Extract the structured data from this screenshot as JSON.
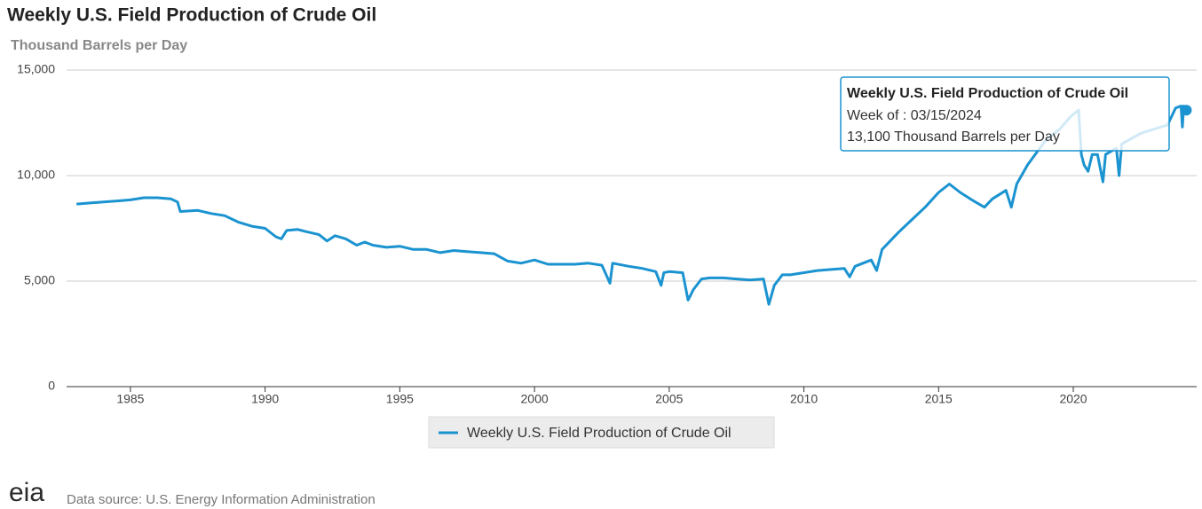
{
  "chart_data": {
    "type": "line",
    "title": "Weekly U.S. Field Production of Crude Oil",
    "y_label": "Thousand Barrels per Day",
    "x": [
      1983.0,
      1983.5,
      1984.0,
      1984.5,
      1985.0,
      1985.5,
      1986.0,
      1986.5,
      1986.75,
      1986.85,
      1987.5,
      1988.0,
      1988.5,
      1989.0,
      1989.5,
      1990.0,
      1990.4,
      1990.6,
      1990.8,
      1991.2,
      1991.5,
      1992.0,
      1992.3,
      1992.6,
      1993.0,
      1993.4,
      1993.7,
      1994.0,
      1994.5,
      1995.0,
      1995.5,
      1996.0,
      1996.5,
      1997.0,
      1997.5,
      1998.0,
      1998.5,
      1999.0,
      1999.5,
      2000.0,
      2000.5,
      2001.0,
      2001.5,
      2002.0,
      2002.5,
      2002.8,
      2002.9,
      2003.5,
      2004.0,
      2004.5,
      2004.7,
      2004.8,
      2005.0,
      2005.5,
      2005.7,
      2005.9,
      2006.2,
      2006.5,
      2007.0,
      2007.5,
      2008.0,
      2008.5,
      2008.7,
      2008.9,
      2009.2,
      2009.5,
      2010.0,
      2010.5,
      2011.0,
      2011.5,
      2011.7,
      2011.9,
      2012.5,
      2012.7,
      2012.9,
      2013.5,
      2014.0,
      2014.5,
      2015.0,
      2015.4,
      2015.8,
      2016.3,
      2016.7,
      2017.0,
      2017.5,
      2017.7,
      2017.9,
      2018.3,
      2018.7,
      2019.0,
      2019.5,
      2019.9,
      2020.2,
      2020.3,
      2020.4,
      2020.55,
      2020.7,
      2020.9,
      2021.1,
      2021.2,
      2021.6,
      2021.7,
      2021.8,
      2022.5,
      2023.0,
      2023.5,
      2023.8,
      2024.0,
      2024.05,
      2024.1,
      2024.2
    ],
    "series": [
      {
        "name": "Weekly U.S. Field Production of Crude Oil",
        "color": "#1a93d0",
        "values": [
          8650,
          8700,
          8750,
          8800,
          8850,
          8950,
          8950,
          8900,
          8750,
          8300,
          8350,
          8200,
          8100,
          7800,
          7600,
          7500,
          7100,
          7000,
          7400,
          7450,
          7350,
          7200,
          6900,
          7150,
          7000,
          6700,
          6850,
          6700,
          6600,
          6650,
          6500,
          6500,
          6350,
          6450,
          6400,
          6350,
          6300,
          5950,
          5850,
          6000,
          5800,
          5800,
          5800,
          5850,
          5750,
          4900,
          5850,
          5700,
          5600,
          5450,
          4800,
          5400,
          5450,
          5400,
          4100,
          4600,
          5100,
          5150,
          5150,
          5100,
          5050,
          5100,
          3900,
          4800,
          5300,
          5300,
          5400,
          5500,
          5550,
          5600,
          5200,
          5700,
          6000,
          5500,
          6500,
          7300,
          7900,
          8500,
          9200,
          9600,
          9200,
          8800,
          8500,
          8900,
          9300,
          8500,
          9600,
          10500,
          11200,
          11700,
          12200,
          12800,
          13100,
          11000,
          10500,
          10200,
          11000,
          11000,
          9700,
          11000,
          11300,
          10000,
          11500,
          12000,
          12200,
          12400,
          13200,
          13300,
          12300,
          13300,
          13100
        ]
      }
    ],
    "xlim": [
      1982.63,
      2024.58
    ],
    "ylim": [
      0,
      15000
    ],
    "xticks": [
      1985,
      1990,
      1995,
      2000,
      2005,
      2010,
      2015,
      2020
    ],
    "yticks": [
      0,
      {
        "value": 5000,
        "label": "5,000"
      },
      {
        "value": 10000,
        "label": "10,000"
      },
      {
        "value": 15000,
        "label": "15,000"
      }
    ],
    "grid": true,
    "legend": "bottom",
    "tooltip": {
      "title": "Weekly U.S. Field Production of Crude Oil",
      "date_label": "Week of : 03/15/2024",
      "value_label": "13,100 Thousand Barrels per Day"
    },
    "logo": "eia",
    "source": "Data source: U.S. Energy Information Administration"
  }
}
